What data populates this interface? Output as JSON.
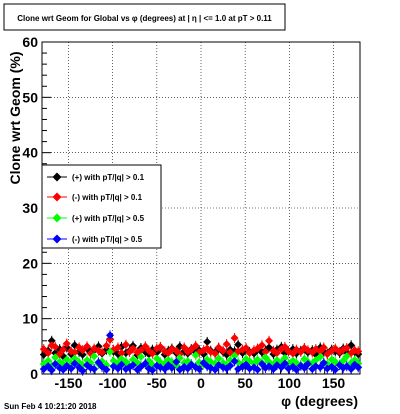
{
  "chart_data": {
    "type": "scatter",
    "title": "Clone wrt Geom for Global vs φ (degrees) at | η | <= 1.0 at pT > 0.11",
    "xlabel": "φ (degrees)",
    "ylabel": "Clone wrt Geom (%)",
    "xlim": [
      -180,
      180
    ],
    "ylim": [
      0,
      60
    ],
    "x_ticks": [
      -150,
      -100,
      -50,
      0,
      50,
      100,
      150
    ],
    "y_ticks": [
      0,
      10,
      20,
      30,
      40,
      50,
      60
    ],
    "grid": true,
    "legend_position": "center-left",
    "footer": "Sun Feb  4 10:21:20 2018",
    "series": [
      {
        "name": "(+) with pT/|q| > 0.1",
        "color": "#000000",
        "x": [
          -178,
          -173,
          -169,
          -165,
          -160,
          -156,
          -152,
          -147,
          -143,
          -138,
          -134,
          -129,
          -125,
          -121,
          -116,
          -112,
          -107,
          -103,
          -99,
          -94,
          -90,
          -85,
          -81,
          -77,
          -72,
          -68,
          -63,
          -59,
          -55,
          -50,
          -46,
          -41,
          -37,
          -33,
          -28,
          -24,
          -19,
          -15,
          -11,
          -6,
          -2,
          3,
          7,
          11,
          16,
          20,
          25,
          29,
          33,
          38,
          42,
          47,
          51,
          55,
          60,
          64,
          69,
          73,
          77,
          82,
          86,
          91,
          95,
          99,
          104,
          108,
          113,
          117,
          121,
          126,
          130,
          135,
          139,
          143,
          148,
          152,
          157,
          161,
          165,
          170,
          174,
          178
        ],
        "y": [
          3.5,
          4.2,
          6.0,
          3.8,
          4.5,
          3.2,
          4.8,
          3.6,
          5.2,
          4.0,
          3.5,
          4.6,
          3.9,
          4.3,
          5.0,
          3.7,
          4.4,
          6.3,
          4.1,
          3.6,
          4.9,
          3.8,
          4.2,
          5.1,
          3.4,
          4.7,
          4.0,
          3.6,
          4.4,
          3.9,
          4.8,
          3.5,
          4.2,
          4.6,
          3.8,
          5.0,
          4.1,
          3.7,
          4.5,
          3.9,
          4.3,
          3.6,
          5.8,
          4.2,
          3.9,
          4.7,
          4.0,
          3.5,
          4.4,
          4.1,
          5.3,
          3.8,
          4.6,
          4.0,
          3.7,
          4.5,
          3.9,
          4.2,
          4.8,
          3.6,
          4.4,
          4.9,
          3.8,
          4.1,
          4.5,
          3.7,
          4.2,
          4.6,
          3.9,
          4.3,
          3.5,
          4.8,
          4.0,
          3.7,
          4.4,
          4.1,
          3.8,
          4.6,
          3.9,
          5.2,
          4.0,
          3.6
        ]
      },
      {
        "name": "(-) with pT/|q| > 0.1",
        "color": "#ff0000",
        "x": [
          -178,
          -173,
          -169,
          -165,
          -160,
          -156,
          -152,
          -147,
          -143,
          -138,
          -134,
          -129,
          -125,
          -121,
          -116,
          -112,
          -107,
          -103,
          -99,
          -94,
          -90,
          -85,
          -81,
          -77,
          -72,
          -68,
          -63,
          -59,
          -55,
          -50,
          -46,
          -41,
          -37,
          -33,
          -28,
          -24,
          -19,
          -15,
          -11,
          -6,
          -2,
          3,
          7,
          11,
          16,
          20,
          25,
          29,
          33,
          38,
          42,
          47,
          51,
          55,
          60,
          64,
          69,
          73,
          77,
          82,
          86,
          91,
          95,
          99,
          104,
          108,
          113,
          117,
          121,
          126,
          130,
          135,
          139,
          143,
          148,
          152,
          157,
          161,
          165,
          170,
          174,
          178
        ],
        "y": [
          4.5,
          3.8,
          5.2,
          4.9,
          3.6,
          4.4,
          5.5,
          4.1,
          3.9,
          4.8,
          4.3,
          5.0,
          3.7,
          4.6,
          4.2,
          3.9,
          5.1,
          6.2,
          4.4,
          4.8,
          3.8,
          5.3,
          4.0,
          4.6,
          3.9,
          4.3,
          5.0,
          4.2,
          3.7,
          4.6,
          4.9,
          4.1,
          3.8,
          4.5,
          4.2,
          3.6,
          4.8,
          4.0,
          4.4,
          5.1,
          3.9,
          4.3,
          4.6,
          4.0,
          3.7,
          4.8,
          4.2,
          5.4,
          3.9,
          6.5,
          4.1,
          4.4,
          4.7,
          3.8,
          4.3,
          4.6,
          5.2,
          4.0,
          6.0,
          4.2,
          3.8,
          4.5,
          4.9,
          4.1,
          3.7,
          4.4,
          4.0,
          4.7,
          4.3,
          3.9,
          4.5,
          4.1,
          4.8,
          3.6,
          4.2,
          4.6,
          4.0,
          4.4,
          4.7,
          3.8,
          4.3,
          4.1
        ]
      },
      {
        "name": "(+) with pT/|q| > 0.5",
        "color": "#00ff00",
        "x": [
          -178,
          -173,
          -169,
          -165,
          -160,
          -156,
          -152,
          -147,
          -143,
          -138,
          -134,
          -129,
          -125,
          -121,
          -116,
          -112,
          -107,
          -103,
          -99,
          -94,
          -90,
          -85,
          -81,
          -77,
          -72,
          -68,
          -63,
          -59,
          -55,
          -50,
          -46,
          -41,
          -37,
          -33,
          -28,
          -24,
          -19,
          -15,
          -11,
          -6,
          -2,
          3,
          7,
          11,
          16,
          20,
          25,
          29,
          33,
          38,
          42,
          47,
          51,
          55,
          60,
          64,
          69,
          73,
          77,
          82,
          86,
          91,
          95,
          99,
          104,
          108,
          113,
          117,
          121,
          126,
          130,
          135,
          139,
          143,
          148,
          152,
          157,
          161,
          165,
          170,
          174,
          178
        ],
        "y": [
          1.8,
          2.4,
          1.5,
          3.0,
          2.2,
          1.7,
          2.6,
          1.9,
          2.8,
          2.1,
          1.6,
          2.5,
          2.0,
          3.2,
          1.8,
          2.3,
          1.6,
          4.0,
          2.4,
          1.9,
          2.7,
          2.2,
          1.5,
          2.6,
          2.0,
          3.1,
          1.8,
          2.4,
          1.7,
          2.8,
          2.1,
          1.9,
          2.5,
          2.2,
          1.6,
          2.9,
          2.0,
          2.3,
          1.8,
          3.4,
          2.1,
          1.7,
          2.6,
          2.2,
          1.9,
          2.8,
          2.0,
          1.6,
          2.5,
          3.3,
          2.1,
          1.8,
          2.7,
          2.3,
          1.9,
          2.6,
          2.0,
          3.0,
          2.2,
          1.7,
          2.5,
          2.1,
          2.9,
          1.8,
          2.4,
          2.0,
          1.6,
          2.7,
          2.2,
          1.9,
          2.5,
          3.1,
          2.0,
          1.8,
          2.6,
          2.2,
          1.7,
          2.4,
          3.2,
          2.0,
          2.5,
          1.9
        ]
      },
      {
        "name": "(-) with pT/|q| > 0.5",
        "color": "#0000ff",
        "x": [
          -178,
          -173,
          -169,
          -165,
          -160,
          -156,
          -152,
          -147,
          -143,
          -138,
          -134,
          -129,
          -125,
          -121,
          -116,
          -112,
          -107,
          -103,
          -99,
          -94,
          -90,
          -85,
          -81,
          -77,
          -72,
          -68,
          -63,
          -59,
          -55,
          -50,
          -46,
          -41,
          -37,
          -33,
          -28,
          -24,
          -19,
          -15,
          -11,
          -6,
          -2,
          3,
          7,
          11,
          16,
          20,
          25,
          29,
          33,
          38,
          42,
          47,
          51,
          55,
          60,
          64,
          69,
          73,
          77,
          82,
          86,
          91,
          95,
          99,
          104,
          108,
          113,
          117,
          121,
          126,
          130,
          135,
          139,
          143,
          148,
          152,
          157,
          161,
          165,
          170,
          174,
          178
        ],
        "y": [
          0.9,
          1.4,
          0.7,
          1.8,
          1.1,
          0.8,
          1.5,
          1.0,
          1.9,
          1.2,
          0.6,
          1.6,
          1.1,
          0.9,
          2.1,
          1.3,
          0.8,
          7.0,
          1.4,
          1.0,
          1.7,
          0.9,
          1.2,
          1.6,
          0.8,
          1.3,
          1.9,
          1.0,
          0.7,
          1.5,
          1.2,
          0.9,
          1.6,
          1.1,
          2.2,
          0.8,
          1.3,
          1.0,
          1.7,
          1.2,
          0.9,
          2.0,
          1.4,
          1.1,
          0.8,
          1.6,
          1.2,
          1.0,
          1.5,
          2.3,
          0.9,
          1.3,
          1.7,
          1.0,
          1.2,
          0.8,
          1.8,
          1.1,
          1.4,
          0.9,
          1.6,
          1.2,
          1.9,
          1.0,
          1.3,
          0.8,
          1.5,
          1.1,
          1.8,
          0.9,
          1.4,
          1.2,
          2.0,
          1.0,
          1.3,
          0.8,
          1.6,
          1.1,
          1.4,
          0.9,
          1.7,
          1.2
        ]
      }
    ]
  }
}
